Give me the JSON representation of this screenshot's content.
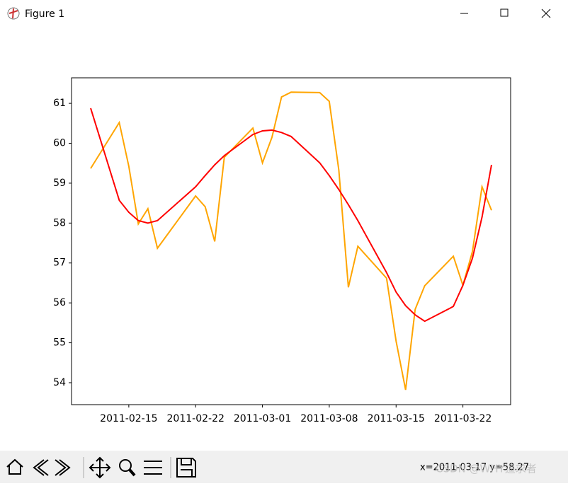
{
  "window": {
    "title": "Figure 1"
  },
  "chart_data": {
    "type": "line",
    "x": [
      "2011-02-11",
      "2011-02-14",
      "2011-02-15",
      "2011-02-16",
      "2011-02-17",
      "2011-02-18",
      "2011-02-22",
      "2011-02-23",
      "2011-02-24",
      "2011-02-25",
      "2011-02-28",
      "2011-03-01",
      "2011-03-02",
      "2011-03-03",
      "2011-03-04",
      "2011-03-07",
      "2011-03-08",
      "2011-03-09",
      "2011-03-10",
      "2011-03-11",
      "2011-03-14",
      "2011-03-15",
      "2011-03-16",
      "2011-03-17",
      "2011-03-18",
      "2011-03-21",
      "2011-03-22",
      "2011-03-23",
      "2011-03-24",
      "2011-03-25"
    ],
    "series": [
      {
        "color": "#ffa500",
        "values": [
          59.37,
          60.52,
          59.42,
          57.98,
          58.36,
          57.37,
          58.68,
          58.41,
          57.54,
          59.65,
          60.38,
          59.51,
          60.15,
          61.16,
          61.28,
          61.27,
          61.05,
          59.33,
          56.39,
          57.42,
          56.62,
          55.04,
          53.82,
          55.84,
          56.43,
          57.17,
          56.44,
          57.29,
          58.91,
          58.32
        ]
      },
      {
        "color": "#ff0000",
        "values": [
          60.88,
          58.57,
          58.27,
          58.06,
          58.0,
          58.06,
          58.91,
          59.19,
          59.46,
          59.69,
          60.22,
          60.31,
          60.33,
          60.27,
          60.17,
          59.51,
          59.19,
          58.84,
          58.46,
          58.06,
          56.76,
          56.27,
          55.93,
          55.7,
          55.54,
          55.91,
          56.44,
          57.12,
          58.15,
          59.46
        ]
      }
    ],
    "xlim": [
      "2011-02-09",
      "2011-03-27"
    ],
    "xticks": [
      "2011-02-15",
      "2011-02-22",
      "2011-03-01",
      "2011-03-08",
      "2011-03-15",
      "2011-03-22"
    ],
    "ylim": [
      53.45,
      61.64
    ],
    "yticks": [
      54,
      55,
      56,
      57,
      58,
      59,
      60,
      61
    ]
  },
  "status": {
    "coords": "x=2011-03-17 y=58.27",
    "watermark": "CSDN @WHY追求者"
  }
}
